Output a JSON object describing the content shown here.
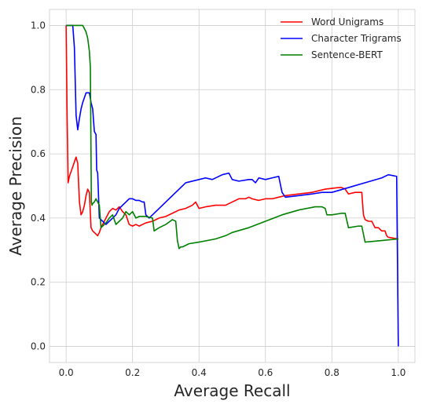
{
  "chart_data": {
    "type": "line",
    "xlabel": "Average Recall",
    "ylabel": "Average Precision",
    "xlim": [
      -0.05,
      1.05
    ],
    "ylim": [
      -0.05,
      1.05
    ],
    "xticks": [
      0.0,
      0.2,
      0.4,
      0.6,
      0.8,
      1.0
    ],
    "yticks": [
      0.0,
      0.2,
      0.4,
      0.6,
      0.8,
      1.0
    ],
    "xtick_labels": [
      "0.0",
      "0.2",
      "0.4",
      "0.6",
      "0.8",
      "1.0"
    ],
    "ytick_labels": [
      "0.0",
      "0.2",
      "0.4",
      "0.6",
      "0.8",
      "1.0"
    ],
    "grid": true,
    "legend_position": "top-right",
    "series": [
      {
        "name": "Word Unigrams",
        "color": "#ff0000",
        "x": [
          0.0,
          0.003,
          0.006,
          0.01,
          0.02,
          0.03,
          0.035,
          0.04,
          0.045,
          0.05,
          0.055,
          0.06,
          0.065,
          0.07,
          0.075,
          0.08,
          0.085,
          0.09,
          0.095,
          0.1,
          0.105,
          0.11,
          0.12,
          0.13,
          0.14,
          0.15,
          0.16,
          0.17,
          0.18,
          0.19,
          0.2,
          0.21,
          0.22,
          0.24,
          0.26,
          0.28,
          0.3,
          0.32,
          0.34,
          0.36,
          0.38,
          0.39,
          0.4,
          0.42,
          0.45,
          0.48,
          0.5,
          0.52,
          0.54,
          0.55,
          0.56,
          0.58,
          0.6,
          0.62,
          0.64,
          0.66,
          0.7,
          0.74,
          0.78,
          0.82,
          0.83,
          0.84,
          0.85,
          0.87,
          0.89,
          0.895,
          0.9,
          0.91,
          0.92,
          0.93,
          0.94,
          0.95,
          0.96,
          0.965,
          0.97,
          1.0
        ],
        "y": [
          1.0,
          0.72,
          0.51,
          0.53,
          0.56,
          0.59,
          0.57,
          0.45,
          0.41,
          0.42,
          0.44,
          0.47,
          0.49,
          0.48,
          0.37,
          0.36,
          0.355,
          0.35,
          0.345,
          0.355,
          0.37,
          0.38,
          0.4,
          0.42,
          0.43,
          0.425,
          0.435,
          0.42,
          0.41,
          0.38,
          0.375,
          0.38,
          0.375,
          0.385,
          0.39,
          0.4,
          0.405,
          0.415,
          0.425,
          0.43,
          0.44,
          0.45,
          0.43,
          0.435,
          0.44,
          0.44,
          0.45,
          0.46,
          0.46,
          0.465,
          0.46,
          0.455,
          0.46,
          0.46,
          0.465,
          0.47,
          0.475,
          0.48,
          0.49,
          0.495,
          0.495,
          0.49,
          0.475,
          0.48,
          0.48,
          0.41,
          0.395,
          0.39,
          0.39,
          0.37,
          0.37,
          0.36,
          0.36,
          0.345,
          0.34,
          0.335
        ]
      },
      {
        "name": "Character Trigrams",
        "color": "#0000ff",
        "x": [
          0.0,
          0.01,
          0.02,
          0.025,
          0.03,
          0.035,
          0.04,
          0.045,
          0.05,
          0.06,
          0.07,
          0.075,
          0.08,
          0.085,
          0.09,
          0.092,
          0.095,
          0.1,
          0.11,
          0.12,
          0.13,
          0.14,
          0.15,
          0.16,
          0.17,
          0.18,
          0.19,
          0.2,
          0.21,
          0.22,
          0.23,
          0.235,
          0.24,
          0.25,
          0.26,
          0.28,
          0.3,
          0.33,
          0.36,
          0.4,
          0.42,
          0.44,
          0.47,
          0.49,
          0.5,
          0.52,
          0.55,
          0.56,
          0.57,
          0.58,
          0.6,
          0.62,
          0.64,
          0.65,
          0.66,
          0.7,
          0.74,
          0.77,
          0.8,
          0.85,
          0.9,
          0.95,
          0.97,
          0.995,
          1.0
        ],
        "y": [
          1.0,
          1.0,
          1.0,
          0.93,
          0.72,
          0.675,
          0.71,
          0.74,
          0.76,
          0.79,
          0.79,
          0.76,
          0.74,
          0.67,
          0.66,
          0.55,
          0.54,
          0.4,
          0.39,
          0.38,
          0.39,
          0.4,
          0.41,
          0.43,
          0.44,
          0.45,
          0.46,
          0.46,
          0.455,
          0.455,
          0.45,
          0.45,
          0.41,
          0.4,
          0.41,
          0.43,
          0.45,
          0.48,
          0.51,
          0.52,
          0.525,
          0.52,
          0.535,
          0.54,
          0.52,
          0.515,
          0.52,
          0.52,
          0.51,
          0.525,
          0.52,
          0.525,
          0.53,
          0.48,
          0.465,
          0.47,
          0.475,
          0.48,
          0.48,
          0.495,
          0.51,
          0.525,
          0.535,
          0.53,
          0.0
        ]
      },
      {
        "name": "Sentence-BERT",
        "color": "#008000",
        "x": [
          0.0,
          0.01,
          0.03,
          0.05,
          0.055,
          0.06,
          0.065,
          0.07,
          0.073,
          0.076,
          0.078,
          0.08,
          0.085,
          0.09,
          0.1,
          0.105,
          0.11,
          0.12,
          0.13,
          0.14,
          0.15,
          0.16,
          0.17,
          0.18,
          0.19,
          0.2,
          0.21,
          0.22,
          0.24,
          0.26,
          0.265,
          0.28,
          0.3,
          0.32,
          0.33,
          0.335,
          0.34,
          0.345,
          0.35,
          0.37,
          0.4,
          0.45,
          0.48,
          0.5,
          0.55,
          0.6,
          0.65,
          0.7,
          0.75,
          0.77,
          0.78,
          0.785,
          0.8,
          0.83,
          0.84,
          0.85,
          0.88,
          0.89,
          0.9,
          0.95,
          1.0
        ],
        "y": [
          1.0,
          1.0,
          1.0,
          1.0,
          0.99,
          0.98,
          0.96,
          0.92,
          0.87,
          0.45,
          0.44,
          0.445,
          0.45,
          0.46,
          0.44,
          0.37,
          0.375,
          0.385,
          0.4,
          0.41,
          0.38,
          0.39,
          0.4,
          0.42,
          0.41,
          0.42,
          0.4,
          0.405,
          0.405,
          0.4,
          0.36,
          0.37,
          0.38,
          0.395,
          0.39,
          0.33,
          0.305,
          0.31,
          0.31,
          0.32,
          0.325,
          0.335,
          0.345,
          0.355,
          0.37,
          0.39,
          0.41,
          0.425,
          0.435,
          0.435,
          0.43,
          0.41,
          0.41,
          0.415,
          0.415,
          0.37,
          0.375,
          0.375,
          0.325,
          0.33,
          0.335
        ]
      }
    ]
  }
}
